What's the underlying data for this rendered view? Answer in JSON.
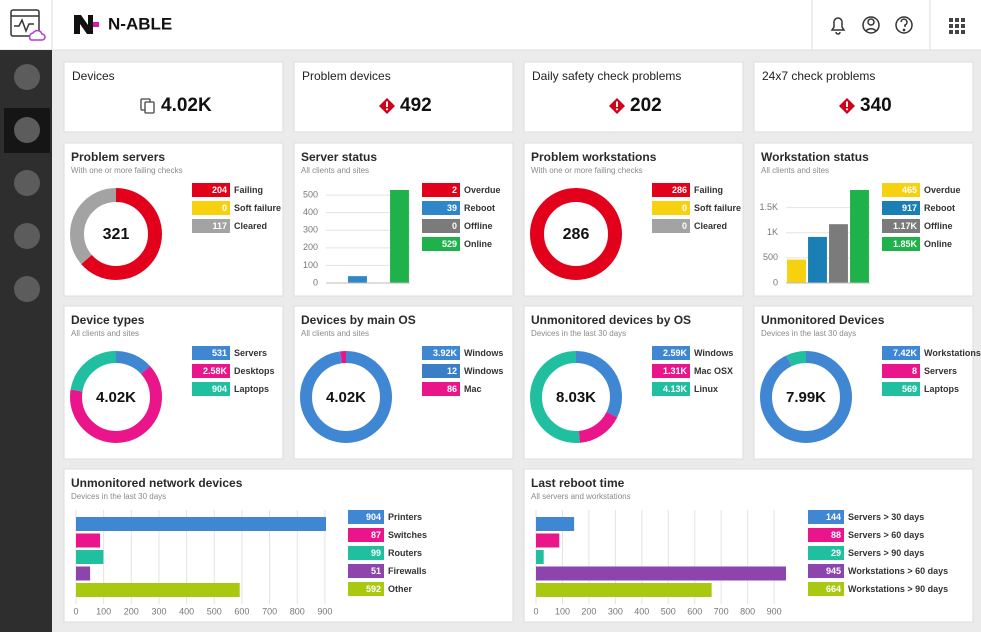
{
  "header": {
    "brand": "N-ABLE"
  },
  "kpis": [
    {
      "title": "Devices",
      "value": "4.02K"
    },
    {
      "title": "Problem devices",
      "value": 492
    },
    {
      "title": "Daily safety check problems",
      "value": 202
    },
    {
      "title": "24x7 check problems",
      "value": 340
    }
  ],
  "widgets": [
    {
      "type": "donut",
      "title": "Problem servers",
      "subtitle": "With one or more failing checks",
      "center": 321,
      "labels": [
        "Failing",
        "Soft failure",
        "Cleared"
      ],
      "values": [
        204,
        0,
        117
      ],
      "colors": [
        "#e2001a",
        "#f5d10f",
        "#a3a3a3"
      ]
    },
    {
      "type": "bar",
      "title": "Server status",
      "subtitle": "All clients and sites",
      "labels": [
        "Overdue",
        "Reboot",
        "Offline",
        "Online"
      ],
      "values": [
        2,
        39,
        0,
        529
      ],
      "colors": [
        "#e2001a",
        "#2f86c8",
        "#7b7b7b",
        "#1fb24a"
      ],
      "ylim": [
        0,
        529
      ],
      "yticks": [
        0,
        100,
        200,
        300,
        400,
        500
      ],
      "grid": true
    },
    {
      "type": "donut",
      "title": "Problem workstations",
      "subtitle": "With one or more failing checks",
      "center": 286,
      "labels": [
        "Failing",
        "Soft failure",
        "Cleared"
      ],
      "values": [
        286,
        0,
        0
      ],
      "colors": [
        "#e2001a",
        "#f5d10f",
        "#a3a3a3"
      ]
    },
    {
      "type": "bar",
      "title": "Workstation status",
      "subtitle": "All clients and sites",
      "labels": [
        "Overdue",
        "Reboot",
        "Offline",
        "Online"
      ],
      "values": [
        465,
        917,
        1170,
        1850
      ],
      "value_labels": [
        "465",
        "917",
        "1.17K",
        "1.85K"
      ],
      "colors": [
        "#f5d10f",
        "#1a7fb5",
        "#7b7b7b",
        "#1fb24a"
      ],
      "ylim": [
        0,
        1850
      ],
      "yticks": [
        0,
        500,
        {
          "value": 1000,
          "label": "1K"
        },
        {
          "value": 1500,
          "label": "1.5K"
        }
      ],
      "grid": true
    },
    {
      "type": "donut",
      "title": "Device types",
      "subtitle": "All clients and sites",
      "center": "4.02K",
      "labels": [
        "Servers",
        "Desktops",
        "Laptops"
      ],
      "values": [
        531,
        2580,
        904
      ],
      "value_labels": [
        "531",
        "2.58K",
        "904"
      ],
      "colors": [
        "#3f86d3",
        "#ea148b",
        "#1fbf9f"
      ]
    },
    {
      "type": "donut",
      "title": "Devices by main OS",
      "subtitle": "All clients and sites",
      "center": "4.02K",
      "labels": [
        "Windows",
        "Windows",
        "Mac"
      ],
      "values": [
        3920,
        12,
        86
      ],
      "value_labels": [
        "3.92K",
        "12",
        "86"
      ],
      "colors": [
        "#3f86d3",
        "#3a7fc6",
        "#ea148b"
      ]
    },
    {
      "type": "donut",
      "title": "Unmonitored devices by OS",
      "subtitle": "Devices in the last 30 days",
      "center": "8.03K",
      "labels": [
        "Windows",
        "Mac OSX",
        "Linux"
      ],
      "values": [
        2590,
        1310,
        4130
      ],
      "value_labels": [
        "2.59K",
        "1.31K",
        "4.13K"
      ],
      "colors": [
        "#3f86d3",
        "#ea148b",
        "#1fbf9f"
      ]
    },
    {
      "type": "donut",
      "title": "Unmonitored Devices",
      "subtitle": "Devices in the last 30 days",
      "center": "7.99K",
      "labels": [
        "Workstations",
        "Servers",
        "Laptops"
      ],
      "values": [
        7420,
        8,
        569
      ],
      "value_labels": [
        "7.42K",
        "8",
        "569"
      ],
      "colors": [
        "#3f86d3",
        "#ea148b",
        "#1fbf9f"
      ]
    },
    {
      "type": "hbar",
      "title": "Unmonitored network devices",
      "subtitle": "Devices in the last 30 days",
      "labels": [
        "Printers",
        "Switches",
        "Routers",
        "Firewalls",
        "Other"
      ],
      "values": [
        904,
        87,
        99,
        51,
        592
      ],
      "colors": [
        "#3f86d3",
        "#ea148b",
        "#1fbf9f",
        "#8e44ad",
        "#a8c90f"
      ],
      "xlim": [
        0,
        904
      ],
      "xticks": [
        0,
        100,
        200,
        300,
        400,
        500,
        600,
        700,
        800,
        900
      ],
      "grid": true
    },
    {
      "type": "hbar",
      "title": "Last reboot time",
      "subtitle": "All servers and workstations",
      "labels": [
        "Servers > 30 days",
        "Servers > 60 days",
        "Servers > 90 days",
        "Workstations > 60 days",
        "Workstations > 90 days"
      ],
      "values": [
        144,
        88,
        29,
        945,
        664
      ],
      "colors": [
        "#3f86d3",
        "#ea148b",
        "#1fbf9f",
        "#8e44ad",
        "#a8c90f"
      ],
      "xlim": [
        0,
        945
      ],
      "xticks": [
        0,
        100,
        200,
        300,
        400,
        500,
        600,
        700,
        800,
        900
      ],
      "grid": true
    }
  ]
}
